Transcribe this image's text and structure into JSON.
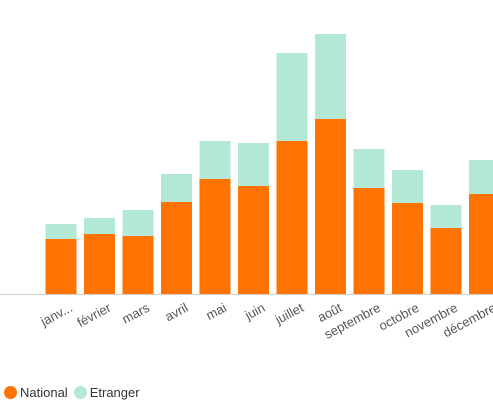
{
  "chart_data": {
    "type": "bar",
    "stacked": true,
    "categories": [
      "janv...",
      "février",
      "mars",
      "avril",
      "mai",
      "juin",
      "juillet",
      "août",
      "septembre",
      "octobre",
      "novembre",
      "décembre"
    ],
    "series": [
      {
        "name": "National",
        "color": "#FF7300",
        "values": [
          55,
          60,
          58,
          92,
          115,
          108,
          153,
          175,
          106,
          91,
          66,
          100
        ]
      },
      {
        "name": "Etranger",
        "color": "#B3E8D4",
        "values": [
          15,
          16,
          26,
          28,
          38,
          43,
          88,
          85,
          39,
          33,
          23,
          34
        ]
      }
    ],
    "ylim": [
      0,
      265
    ],
    "grid": false,
    "legend_position": "bottom-left"
  }
}
